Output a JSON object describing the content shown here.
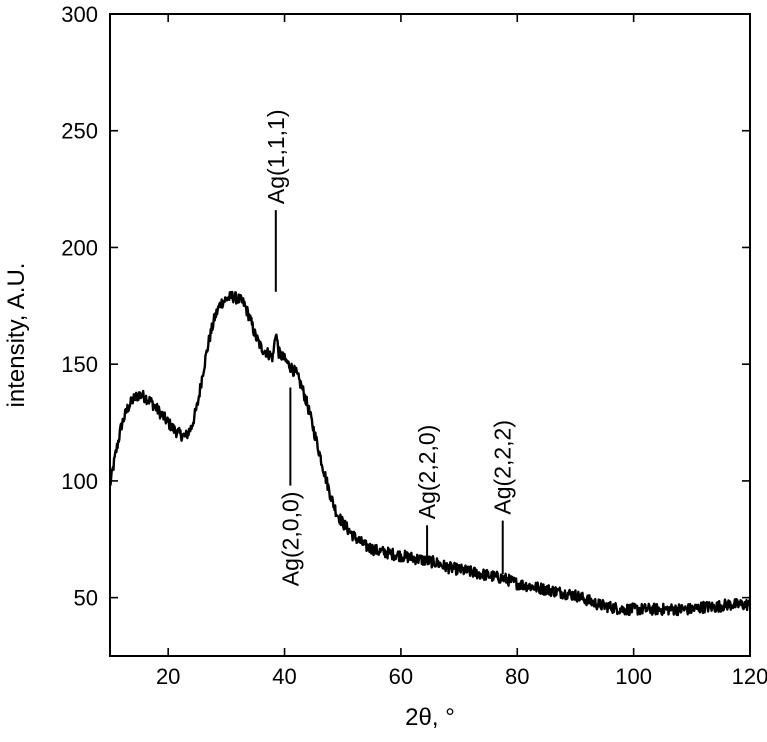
{
  "chart_data": {
    "type": "line",
    "xlabel": "2θ, °",
    "ylabel": "intensity, A.U.",
    "xlim": [
      10,
      120
    ],
    "ylim": [
      25,
      300
    ],
    "xticks": [
      20,
      40,
      60,
      80,
      100,
      120
    ],
    "xtick_labels": [
      "20",
      "40",
      "60",
      "80",
      "100",
      "120"
    ],
    "yticks": [
      50,
      100,
      150,
      200,
      250,
      300
    ],
    "ytick_labels": [
      "50",
      "100",
      "150",
      "200",
      "250",
      "300"
    ],
    "grid": false,
    "line_color": "#000000",
    "series": [
      {
        "x": [
          10,
          11,
          12,
          13,
          14,
          15,
          16,
          17,
          18,
          19,
          20,
          21,
          22,
          23,
          24,
          25,
          26,
          27,
          28,
          29,
          30,
          31,
          32,
          33,
          34,
          35,
          36,
          37,
          38,
          38.5,
          39,
          40,
          41,
          42,
          43,
          44,
          45,
          46,
          47,
          48,
          49,
          50,
          52,
          54,
          56,
          58,
          60,
          62,
          64,
          66,
          68,
          70,
          72,
          74,
          76,
          78,
          80,
          82,
          84,
          86,
          88,
          90,
          92,
          94,
          96,
          98,
          100,
          102,
          104,
          106,
          108,
          110,
          112,
          114,
          116,
          118,
          120
        ],
        "y": [
          98,
          112,
          124,
          131,
          135,
          137,
          136,
          134,
          131,
          128,
          125,
          122,
          120,
          119,
          123,
          132,
          147,
          160,
          170,
          176,
          178,
          179,
          178,
          176,
          170,
          162,
          157,
          155,
          153,
          164,
          155,
          152,
          149,
          146,
          140,
          132,
          122,
          112,
          102,
          93,
          86,
          82,
          76,
          72,
          70,
          69,
          68,
          67,
          66,
          65,
          63,
          62,
          61,
          60,
          59,
          58,
          56,
          55,
          54,
          53,
          52,
          51,
          49,
          47,
          46,
          45,
          45,
          45,
          45,
          45,
          45,
          45,
          46,
          46,
          47,
          47,
          47
        ]
      }
    ],
    "annotations": [
      {
        "label": "Ag(1,1,1)",
        "x": 38.5,
        "line_top": 216,
        "line_bottom": 181,
        "text_side": "above"
      },
      {
        "label": "Ag(2,0,0)",
        "x": 41,
        "line_top": 140,
        "line_bottom": 98,
        "text_side": "below"
      },
      {
        "label": "Ag(2,2,0)",
        "x": 64.5,
        "line_top": 81,
        "line_bottom": 68,
        "text_side": "above"
      },
      {
        "label": "Ag(2,2,2)",
        "x": 77.5,
        "line_top": 83,
        "line_bottom": 60,
        "text_side": "above"
      }
    ]
  }
}
